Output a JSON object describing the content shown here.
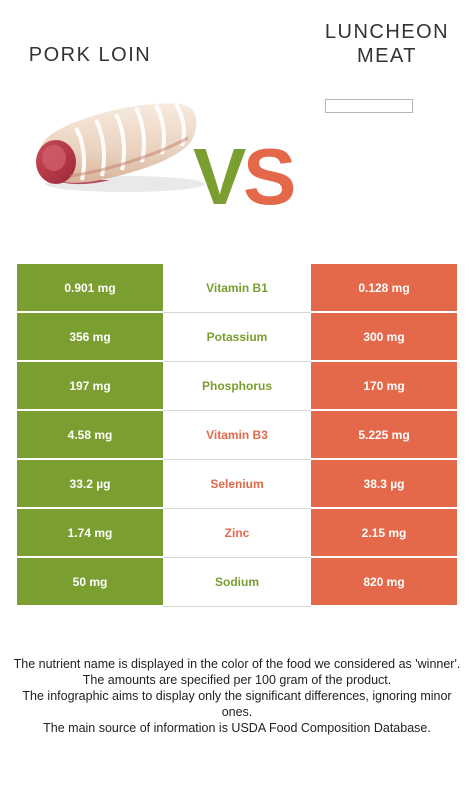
{
  "header": {
    "left_food": "PORK LOIN",
    "right_food_line1": "LUNCHEON",
    "right_food_line2": "MEAT",
    "vs_v": "V",
    "vs_s": "S"
  },
  "colors": {
    "left_food": "#7a9e2f",
    "right_food": "#e4694b"
  },
  "images": {
    "left": "pork-loin-roast-image",
    "right": "broken-image-placeholder"
  },
  "rows": [
    {
      "left": "0.901 mg",
      "nutrient": "Vitamin B1",
      "right": "0.128 mg",
      "winner": "left"
    },
    {
      "left": "356 mg",
      "nutrient": "Potassium",
      "right": "300 mg",
      "winner": "left"
    },
    {
      "left": "197 mg",
      "nutrient": "Phosphorus",
      "right": "170 mg",
      "winner": "left"
    },
    {
      "left": "4.58 mg",
      "nutrient": "Vitamin B3",
      "right": "5.225 mg",
      "winner": "right"
    },
    {
      "left": "33.2 µg",
      "nutrient": "Selenium",
      "right": "38.3 µg",
      "winner": "right"
    },
    {
      "left": "1.74 mg",
      "nutrient": "Zinc",
      "right": "2.15 mg",
      "winner": "right"
    },
    {
      "left": "50 mg",
      "nutrient": "Sodium",
      "right": "820 mg",
      "winner": "left"
    }
  ],
  "footer": [
    "The nutrient name is displayed in the color of the food we considered as 'winner'.",
    "The amounts are specified per 100 gram of the product.",
    "The infographic aims to display only the significant differences, ignoring minor ones.",
    "The main source of information is USDA Food Composition Database."
  ]
}
